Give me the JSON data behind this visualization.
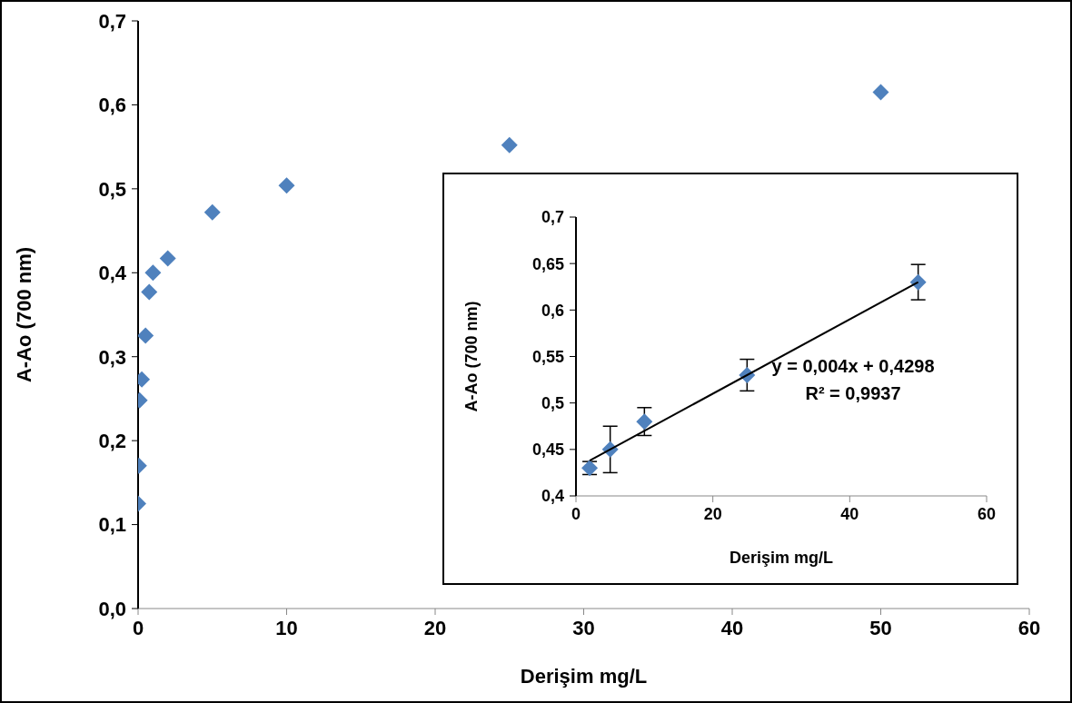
{
  "chart_data": [
    {
      "type": "scatter",
      "xlabel": "Derişim mg/L",
      "ylabel": "A-Ao  (700 nm)",
      "xlim": [
        0,
        60
      ],
      "xticks": [
        0,
        10,
        20,
        30,
        40,
        50,
        60
      ],
      "ylim": [
        0,
        0.7
      ],
      "yticks": [
        {
          "value": 0,
          "label": "0,0"
        },
        {
          "value": 0.1,
          "label": "0,1"
        },
        {
          "value": 0.2,
          "label": "0,2"
        },
        {
          "value": 0.3,
          "label": "0,3"
        },
        {
          "value": 0.4,
          "label": "0,4"
        },
        {
          "value": 0.5,
          "label": "0,5"
        },
        {
          "value": 0.6,
          "label": "0,6"
        },
        {
          "value": 0.7,
          "label": "0,7"
        }
      ],
      "grid": false,
      "marker": "diamond",
      "series": [
        {
          "color": "#4f81bd",
          "x": [
            0,
            0.05,
            0.1,
            0.25,
            0.5,
            0.75,
            1,
            2,
            5,
            10,
            25,
            50
          ],
          "values": [
            0.125,
            0.17,
            0.248,
            0.273,
            0.325,
            0.377,
            0.4,
            0.417,
            0.472,
            0.504,
            0.552,
            0.615
          ]
        }
      ]
    },
    {
      "type": "scatter",
      "xlabel": "Derişim mg/L",
      "ylabel": "A-Ao  (700 nm)",
      "xlim": [
        0,
        60
      ],
      "xticks": [
        0,
        20,
        40,
        60
      ],
      "ylim": [
        0.4,
        0.7
      ],
      "yticks": [
        {
          "value": 0.4,
          "label": "0,4"
        },
        {
          "value": 0.45,
          "label": "0,45"
        },
        {
          "value": 0.5,
          "label": "0,5"
        },
        {
          "value": 0.55,
          "label": "0,55"
        },
        {
          "value": 0.6,
          "label": "0,6"
        },
        {
          "value": 0.65,
          "label": "0,65"
        },
        {
          "value": 0.7,
          "label": "0,7"
        }
      ],
      "grid": false,
      "marker": "diamond",
      "annotations": [
        "y = 0,004x + 0,4298",
        "R² = 0,9937"
      ],
      "series": [
        {
          "color": "#4f81bd",
          "x": [
            2,
            5,
            10,
            25,
            50
          ],
          "values": [
            0.43,
            0.45,
            0.48,
            0.53,
            0.63
          ],
          "errors": [
            0.007,
            0.025,
            0.015,
            0.017,
            0.019
          ]
        },
        {
          "type": "line",
          "marker": "none",
          "color": "#000000",
          "x": [
            2,
            50
          ],
          "values": [
            0.438,
            0.63
          ]
        }
      ]
    }
  ]
}
